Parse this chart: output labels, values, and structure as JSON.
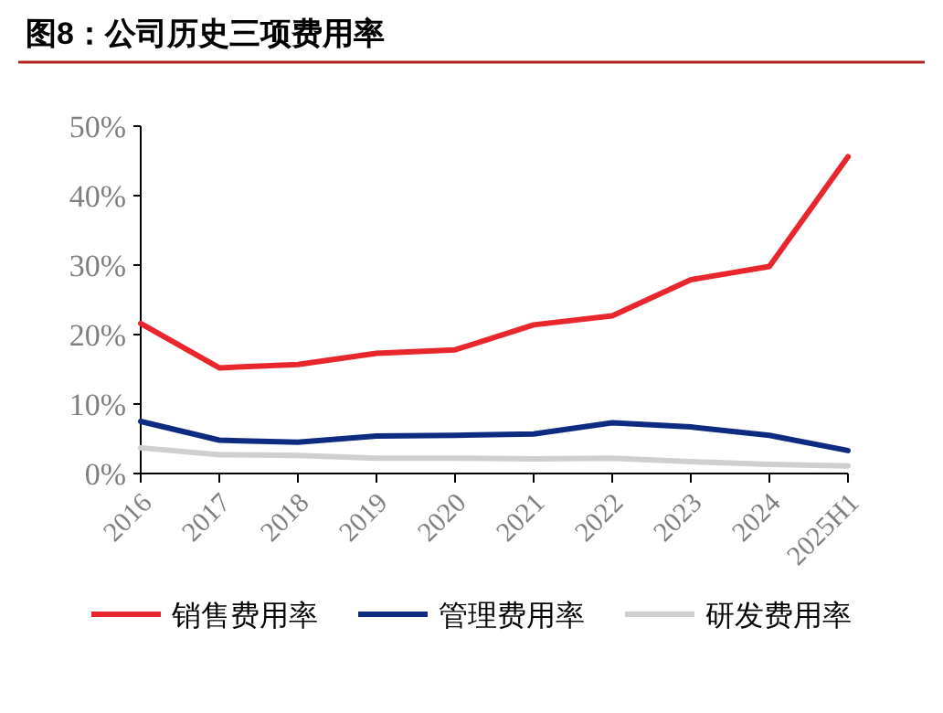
{
  "chart_data": {
    "type": "line",
    "title": "图8：公司历史三项费用率",
    "categories": [
      "2016",
      "2017",
      "2018",
      "2019",
      "2020",
      "2021",
      "2022",
      "2023",
      "2024",
      "2025H1"
    ],
    "series": [
      {
        "name": "销售费用率",
        "color": "#e8262b",
        "values": [
          21.6,
          15.2,
          15.7,
          17.3,
          17.8,
          21.4,
          22.7,
          27.9,
          29.8,
          45.6
        ]
      },
      {
        "name": "管理费用率",
        "color": "#0e2b82",
        "values": [
          7.5,
          4.8,
          4.5,
          5.4,
          5.5,
          5.7,
          7.3,
          6.7,
          5.5,
          3.3
        ]
      },
      {
        "name": "研发费用率",
        "color": "#cfcfcf",
        "values": [
          3.7,
          2.7,
          2.6,
          2.2,
          2.2,
          2.1,
          2.2,
          1.7,
          1.3,
          1.1
        ]
      }
    ],
    "ylim": [
      0,
      50
    ],
    "yticks": [
      {
        "value": 0,
        "label": "0%"
      },
      {
        "value": 10,
        "label": "10%"
      },
      {
        "value": 20,
        "label": "20%"
      },
      {
        "value": 30,
        "label": "30%"
      },
      {
        "value": 40,
        "label": "40%"
      },
      {
        "value": 50,
        "label": "50%"
      }
    ],
    "legend": "bottom",
    "grid": false,
    "marker": "none",
    "line_style": "solid"
  }
}
